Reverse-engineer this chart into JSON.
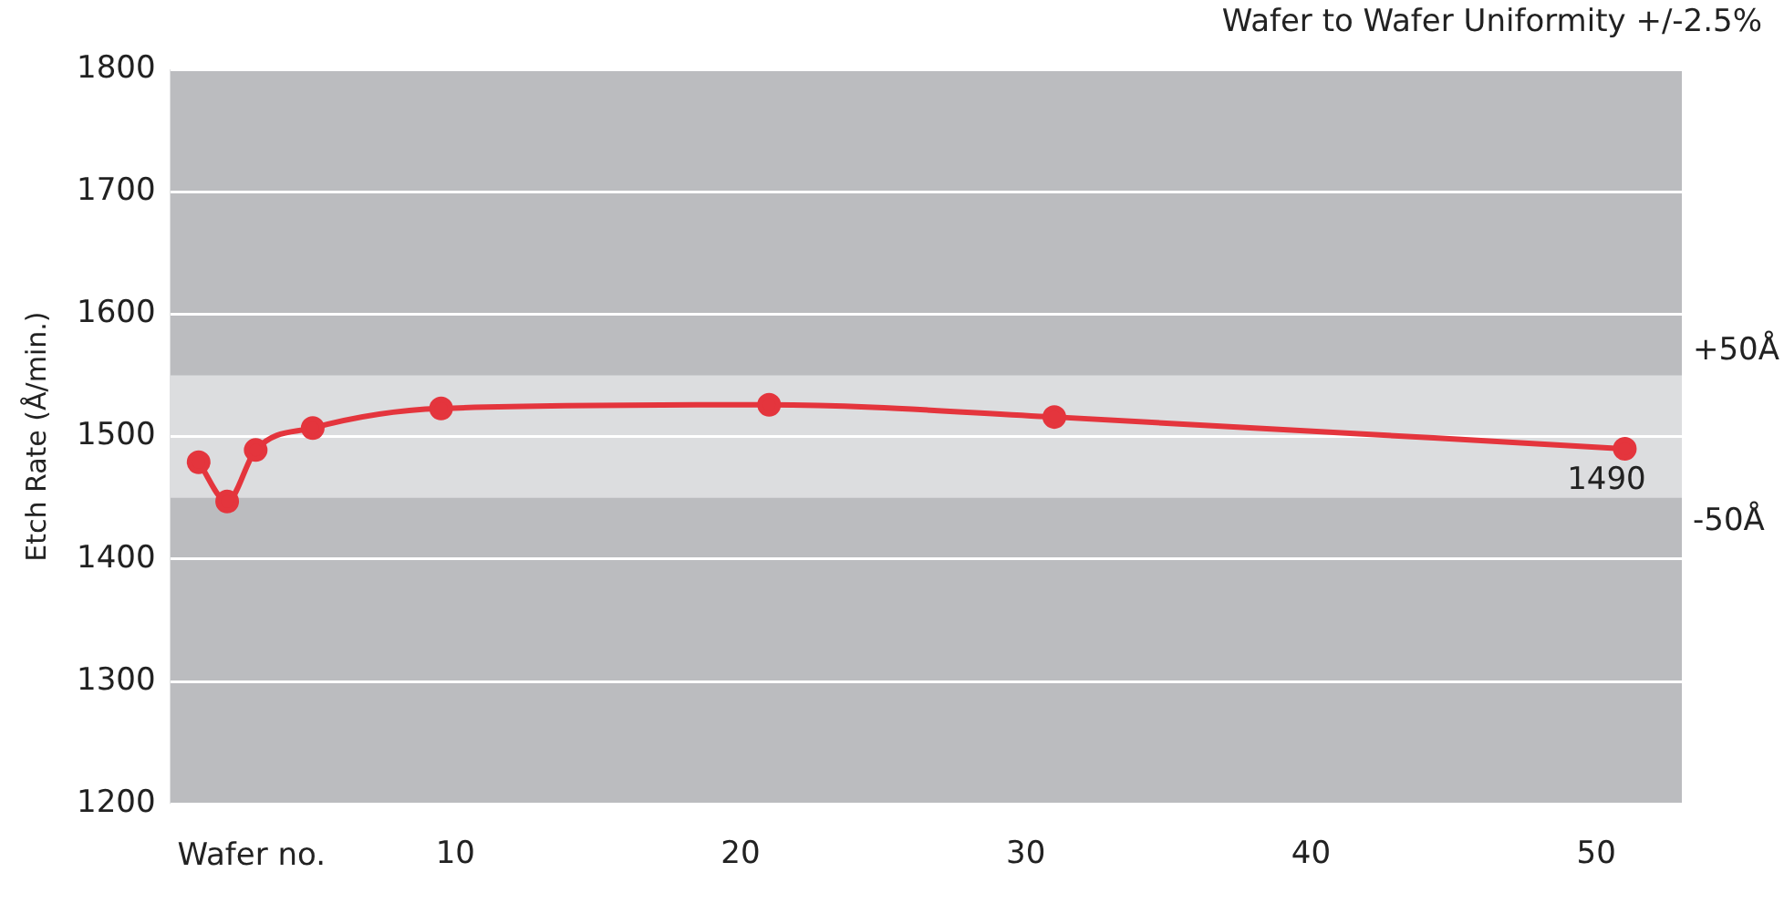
{
  "chart_data": {
    "type": "line",
    "title": "Wafer to Wafer Uniformity +/-2.5%",
    "xlabel": "Wafer no.",
    "ylabel": "Etch Rate (Å/min.)",
    "x": [
      1,
      2,
      3,
      5,
      9.5,
      21,
      31,
      51
    ],
    "series": [
      {
        "color": "#e4353d",
        "values": [
          1479,
          1447,
          1489,
          1507,
          1523,
          1526,
          1516,
          1490
        ],
        "value_labels": [
          null,
          null,
          null,
          null,
          null,
          null,
          null,
          "1490"
        ]
      }
    ],
    "xlim": [
      0,
      53
    ],
    "xticks": [
      10,
      20,
      30,
      40,
      50
    ],
    "ylim": [
      1200,
      1800
    ],
    "yticks": [
      1200,
      1300,
      1400,
      1500,
      1600,
      1700,
      1800
    ],
    "bands": [
      {
        "axis": "y",
        "from": 1500,
        "to": 1550,
        "color": "#dcdddf",
        "label": "+50Å"
      },
      {
        "axis": "y",
        "from": 1500,
        "to": 1450,
        "color": "#dcdddf",
        "label": "-50Å"
      }
    ],
    "grid": "y",
    "legend": false,
    "marker": "circle",
    "line_style": "solid"
  }
}
